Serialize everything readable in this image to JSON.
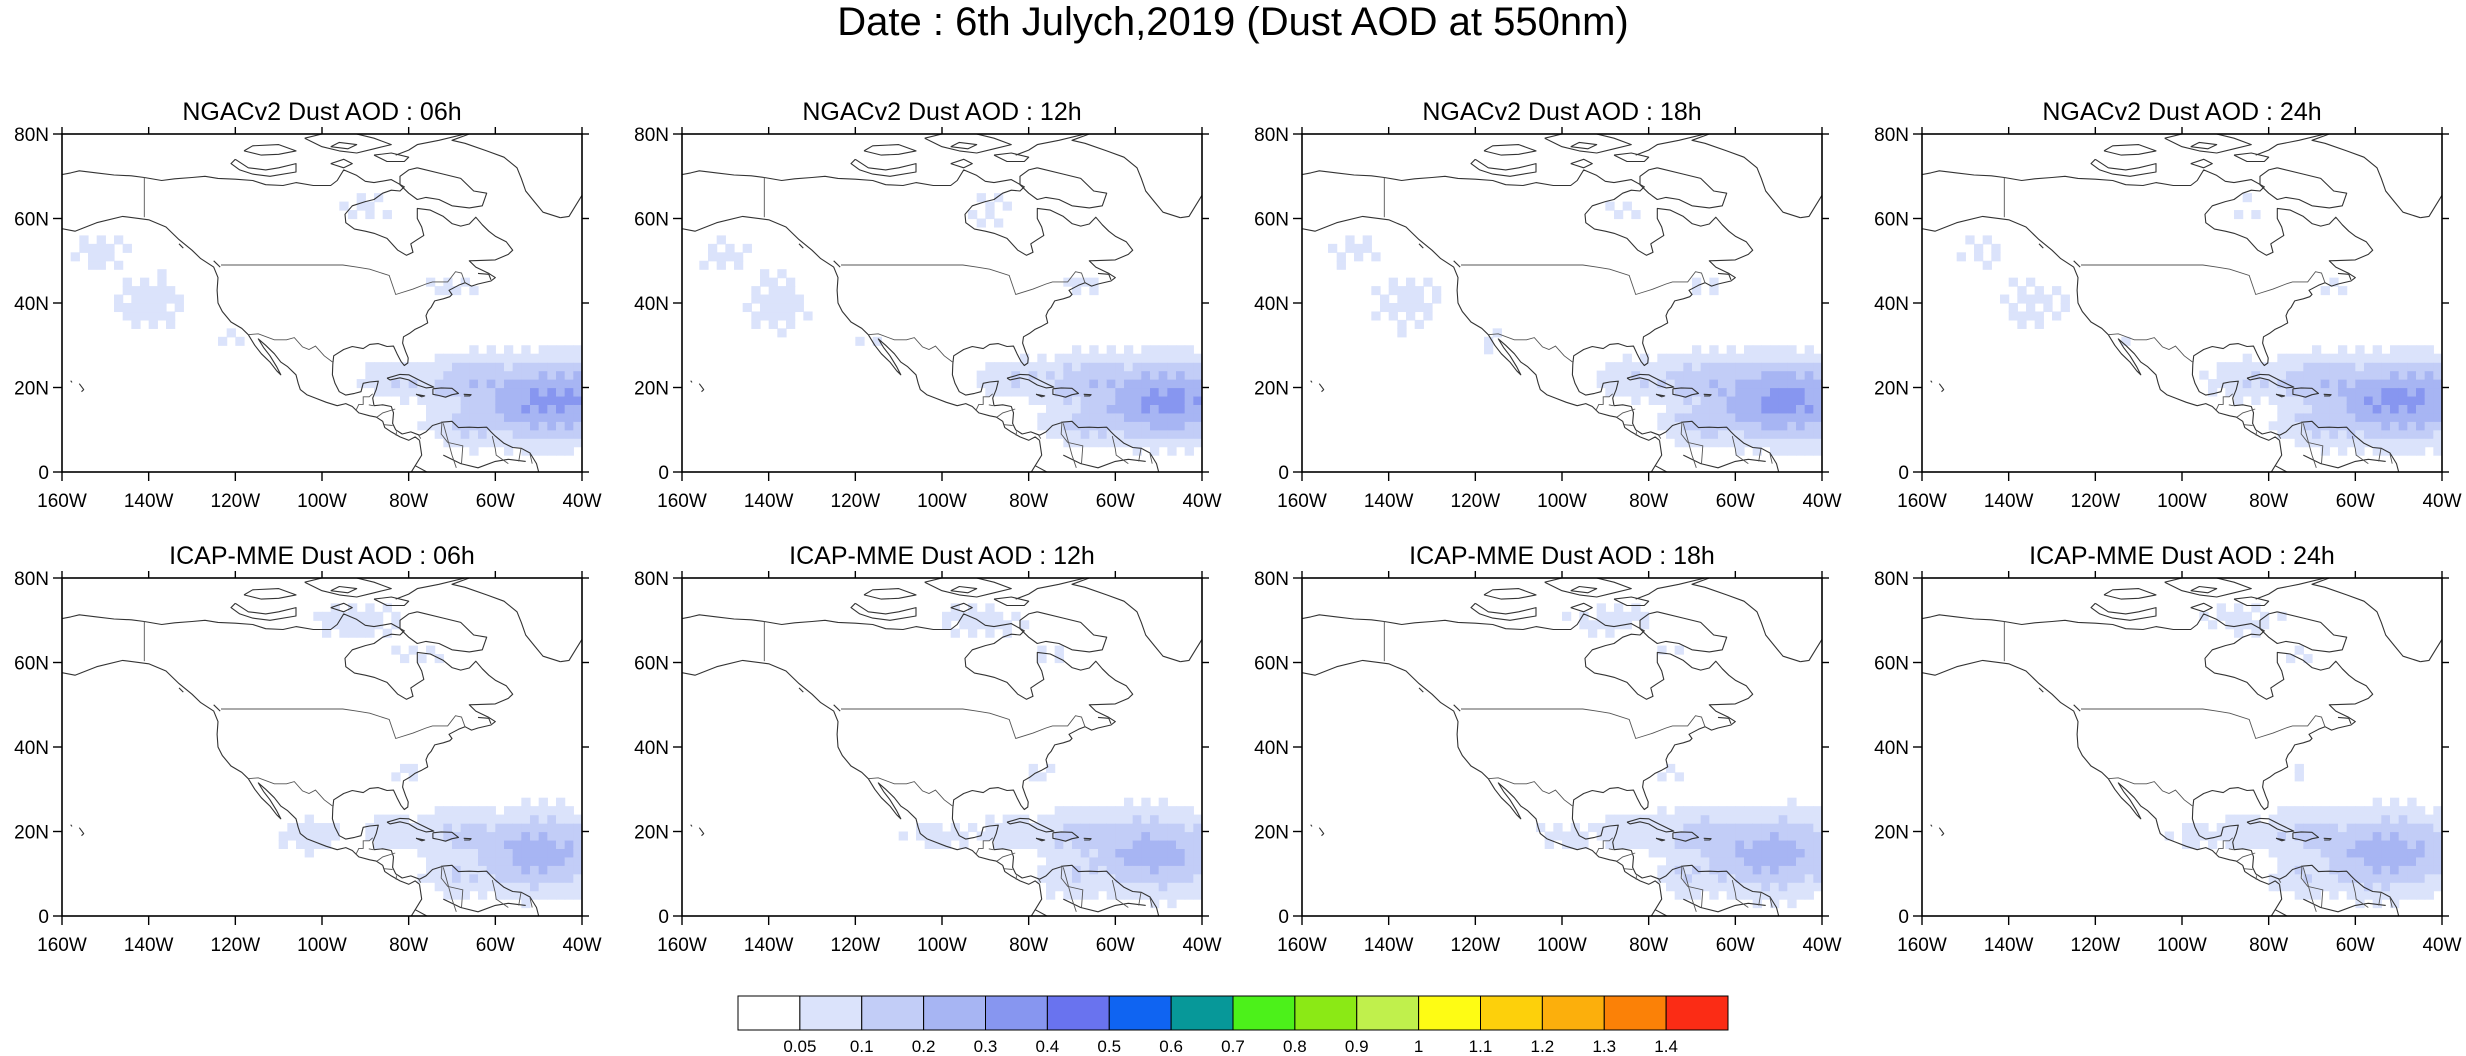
{
  "title": "Date : 6th Julych,2019 (Dust AOD at 550nm)",
  "colors": {
    "palette": [
      "#ffffff",
      "#dbe3fb",
      "#c2cdf7",
      "#a7b5f3",
      "#8796f0",
      "#6973ef",
      "#0f64f2",
      "#079899",
      "#4cf11a",
      "#8be915",
      "#c0f04c",
      "#fefc14",
      "#fdd00b",
      "#fcaf0c",
      "#fb8107",
      "#fb2c15"
    ],
    "coast": "#333333"
  },
  "chart_data": {
    "type": "map_grid",
    "projection": "cylindrical equidistant",
    "lon_range": [
      -160,
      -40
    ],
    "lat_range": [
      0,
      80
    ],
    "lon_ticks": [
      "160W",
      "140W",
      "120W",
      "100W",
      "80W",
      "60W",
      "40W"
    ],
    "lat_ticks": [
      "0",
      "20N",
      "40N",
      "60N",
      "80N"
    ],
    "colorbar": {
      "labels": [
        "0.05",
        "0.1",
        "0.2",
        "0.3",
        "0.4",
        "0.5",
        "0.6",
        "0.7",
        "0.8",
        "0.9",
        "1",
        "1.1",
        "1.2",
        "1.3",
        "1.4"
      ],
      "n_bins": 16
    },
    "panels": [
      {
        "title": "NGACv2 Dust AOD : 06h",
        "model": "NGACv2",
        "hour": 6
      },
      {
        "title": "NGACv2 Dust AOD : 12h",
        "model": "NGACv2",
        "hour": 12
      },
      {
        "title": "NGACv2 Dust AOD : 18h",
        "model": "NGACv2",
        "hour": 18
      },
      {
        "title": "NGACv2 Dust AOD : 24h",
        "model": "NGACv2",
        "hour": 24
      },
      {
        "title": "ICAP-MME Dust AOD : 06h",
        "model": "ICAP-MME",
        "hour": 6
      },
      {
        "title": "ICAP-MME Dust AOD : 12h",
        "model": "ICAP-MME",
        "hour": 12
      },
      {
        "title": "ICAP-MME Dust AOD : 18h",
        "model": "ICAP-MME",
        "hour": 18
      },
      {
        "title": "ICAP-MME Dust AOD : 24h",
        "model": "ICAP-MME",
        "hour": 24
      }
    ]
  }
}
